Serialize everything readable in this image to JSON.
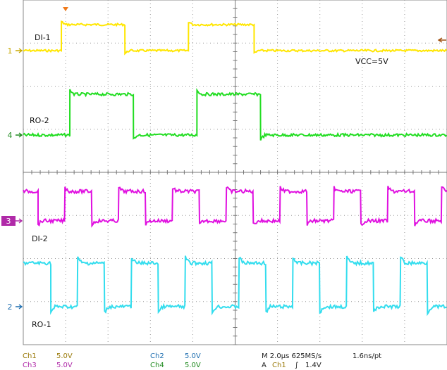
{
  "traces": [
    {
      "id": "ch1",
      "label": "DI-1",
      "marker": "1",
      "color": "#ffe600",
      "marker_color": "#c8a800",
      "levels": {
        "high": 1,
        "low": 0
      },
      "edges": [
        [
          0,
          0
        ],
        [
          0.09,
          1
        ],
        [
          0.24,
          0
        ],
        [
          0.39,
          1
        ],
        [
          0.545,
          0
        ],
        [
          1,
          0
        ]
      ]
    },
    {
      "id": "ch4",
      "label": "RO-2",
      "marker": "4",
      "color": "#22dd22",
      "marker_color": "#1f8a1f",
      "edges": [
        [
          0,
          0
        ],
        [
          0.11,
          1
        ],
        [
          0.26,
          0
        ],
        [
          0.41,
          1
        ],
        [
          0.56,
          0
        ],
        [
          1,
          0
        ]
      ]
    },
    {
      "id": "ch3",
      "label": "DI-2",
      "marker": "3",
      "color": "#e011e0",
      "marker_color": "#b02aa8"
    },
    {
      "id": "ch2",
      "label": "RO-1",
      "marker": "2",
      "color": "#33ddee",
      "marker_color": "#1f6fb0"
    }
  ],
  "annotations": {
    "vcc": "VCC=5V"
  },
  "status": {
    "ch1_label": "Ch1",
    "ch1_scale": "5.0V",
    "ch2_label": "Ch2",
    "ch2_scale": "5.0V",
    "ch3_label": "Ch3",
    "ch3_scale": "5.0V",
    "ch4_label": "Ch4",
    "ch4_scale": "5.0V",
    "timebase": "M 2.0µs 625MS/s",
    "resolution": "1.6ns/pt",
    "trigger_prefix": "A",
    "trigger_channel": "Ch1",
    "trigger_slope_symbol": "∫",
    "trigger_level": "1.4V"
  }
}
